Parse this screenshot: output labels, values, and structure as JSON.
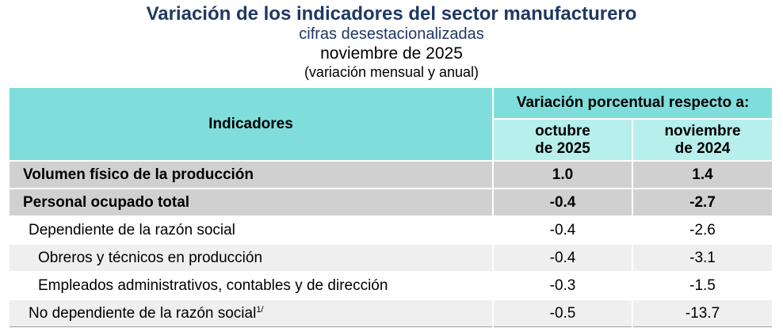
{
  "header": {
    "title": "Variación de los indicadores del sector manufacturero",
    "subtitle": "cifras desestacionalizadas",
    "period": "noviembre de 2025",
    "note": "(variación mensual y anual)"
  },
  "table": {
    "indicators_header": "Indicadores",
    "group_header": "Variación porcentual respecto a:",
    "col1": {
      "line1": "octubre",
      "line2": "de 2025"
    },
    "col2": {
      "line1": "noviembre",
      "line2": "de 2024"
    },
    "rows": [
      {
        "label": "Volumen físico de la producción",
        "v1": "1.0",
        "v2": "1.4"
      },
      {
        "label": "Personal ocupado total",
        "v1": "-0.4",
        "v2": "-2.7"
      },
      {
        "label": "Dependiente de la razón social",
        "v1": "-0.4",
        "v2": "-2.6"
      },
      {
        "label": "Obreros y técnicos en producción",
        "v1": "-0.4",
        "v2": "-3.1"
      },
      {
        "label": "Empleados administrativos, contables y de dirección",
        "v1": "-0.3",
        "v2": "-1.5"
      },
      {
        "label": "No dependiente de la razón social",
        "footnote": "1/",
        "v1": "-0.5",
        "v2": "-13.7"
      }
    ]
  },
  "colors": {
    "title": "#1F3864",
    "header_dark": "#7FDEDB",
    "header_light": "#B6EFEC",
    "bold_row": "#D0D0D0",
    "shade_row": "#EFEFEF"
  }
}
